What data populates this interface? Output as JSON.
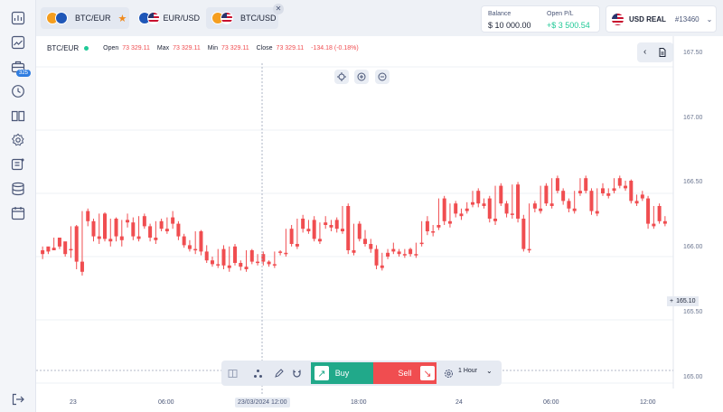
{
  "tabs": [
    {
      "label": "BTC/EUR",
      "coins": [
        "btc",
        "eur"
      ],
      "active": true,
      "favorite": true
    },
    {
      "label": "EUR/USD",
      "coins": [
        "eur",
        "usd"
      ],
      "active": false,
      "favorite": false
    },
    {
      "label": "BTC/USD",
      "coins": [
        "btc",
        "usd"
      ],
      "active": true,
      "favorite": false
    }
  ],
  "account": {
    "balance_label": "Balance",
    "balance_value": "$ 10 000.00",
    "pl_label": "Open P/L",
    "pl_value": "+$ 3 500.54",
    "type": "USD REAL",
    "id": "#13460",
    "pl_color": "#20c997"
  },
  "sidebar": {
    "badge": "325",
    "icons": [
      "dashboard-icon",
      "chart-icon",
      "portfolio-icon",
      "history-icon",
      "book-icon",
      "settings-icon",
      "news-icon",
      "database-icon",
      "calendar-icon",
      "logout-icon"
    ]
  },
  "info": {
    "symbol": "BTC/EUR",
    "open_label": "Open",
    "open": "73 329.11",
    "max_label": "Max",
    "max": "73 329.11",
    "min_label": "Min",
    "min": "73 329.11",
    "close_label": "Close",
    "close": "73 329.11",
    "change": "-134.18 (-0.18%)"
  },
  "y_axis": [
    "167.50",
    "167.00",
    "166.50",
    "166.00",
    "165.50",
    "165.00"
  ],
  "x_axis": [
    "23",
    "06:00",
    "23/03/2024 12:00",
    "18:00",
    "24",
    "06:00",
    "12:00"
  ],
  "crosshair_price": "165.10",
  "trade": {
    "buy": "Buy",
    "sell": "Sell",
    "interval": "1 Hour"
  },
  "colors": {
    "up": "#20c997",
    "down": "#f04d50",
    "accent": "#2f7de1"
  },
  "chart_data": {
    "type": "candlestick",
    "ylim": [
      164.9,
      167.6
    ],
    "candles": [
      [
        166.05,
        166.08,
        166.02,
        165.98
      ],
      [
        166.08,
        166.07,
        166.04,
        166.02
      ],
      [
        166.07,
        166.15,
        166.05,
        166.05
      ],
      [
        166.15,
        166.12,
        166.08,
        166.06
      ],
      [
        166.12,
        166.05,
        166.02,
        166.0
      ],
      [
        166.06,
        166.24,
        166.05,
        165.99
      ],
      [
        166.24,
        166.25,
        165.96,
        165.9
      ],
      [
        165.96,
        166.36,
        165.88,
        165.85
      ],
      [
        166.36,
        166.38,
        166.28,
        166.24
      ],
      [
        166.28,
        166.3,
        166.16,
        166.12
      ],
      [
        166.16,
        166.34,
        166.14,
        166.1
      ],
      [
        166.34,
        166.35,
        166.14,
        166.12
      ],
      [
        166.14,
        166.3,
        166.12,
        166.08
      ],
      [
        166.3,
        166.31,
        166.16,
        166.12
      ],
      [
        166.16,
        166.29,
        166.13,
        166.08
      ],
      [
        166.29,
        166.34,
        166.27,
        166.23
      ],
      [
        166.27,
        166.31,
        166.16,
        166.13
      ],
      [
        166.16,
        166.32,
        166.14,
        166.12
      ],
      [
        166.32,
        166.34,
        166.24,
        166.22
      ],
      [
        166.24,
        166.26,
        166.15,
        166.12
      ],
      [
        166.15,
        166.28,
        166.13,
        166.1
      ],
      [
        166.28,
        166.3,
        166.22,
        166.2
      ],
      [
        166.22,
        166.31,
        166.2,
        166.18
      ],
      [
        166.31,
        166.36,
        166.26,
        166.22
      ],
      [
        166.26,
        166.28,
        166.16,
        166.13
      ],
      [
        166.16,
        166.18,
        166.09,
        166.07
      ],
      [
        166.09,
        166.13,
        166.06,
        166.04
      ],
      [
        166.06,
        166.2,
        166.05,
        166.02
      ],
      [
        166.2,
        166.21,
        166.04,
        166.01
      ],
      [
        166.04,
        166.09,
        165.97,
        165.95
      ],
      [
        165.97,
        166.0,
        165.94,
        165.92
      ],
      [
        165.94,
        166.06,
        165.93,
        165.91
      ],
      [
        166.06,
        166.09,
        165.93,
        165.9
      ],
      [
        165.93,
        166.08,
        165.91,
        165.88
      ],
      [
        166.08,
        166.1,
        165.95,
        165.93
      ],
      [
        165.95,
        165.97,
        165.92,
        165.89
      ],
      [
        165.92,
        166.05,
        165.9,
        165.88
      ],
      [
        166.05,
        166.06,
        165.96,
        165.94
      ],
      [
        165.96,
        166.02,
        165.95,
        165.93
      ],
      [
        166.02,
        166.04,
        165.96,
        165.93
      ],
      [
        165.96,
        165.97,
        165.94,
        165.92
      ],
      [
        165.94,
        166.04,
        165.93,
        165.91
      ],
      [
        166.04,
        166.05,
        166.03,
        166.01
      ],
      [
        166.03,
        166.22,
        166.02,
        166.0
      ],
      [
        166.22,
        166.25,
        166.1,
        166.08
      ],
      [
        166.1,
        166.3,
        166.08,
        166.06
      ],
      [
        166.3,
        166.33,
        166.22,
        166.19
      ],
      [
        166.22,
        166.29,
        166.2,
        166.18
      ],
      [
        166.29,
        166.32,
        166.14,
        166.12
      ],
      [
        166.14,
        166.27,
        166.12,
        166.1
      ],
      [
        166.27,
        166.32,
        166.25,
        166.22
      ],
      [
        166.25,
        166.29,
        166.23,
        166.2
      ],
      [
        166.29,
        166.31,
        166.22,
        166.19
      ],
      [
        166.22,
        166.4,
        166.2,
        166.18
      ],
      [
        166.4,
        166.42,
        166.05,
        166.02
      ],
      [
        166.05,
        166.26,
        166.03,
        166.01
      ],
      [
        166.26,
        166.28,
        166.14,
        166.12
      ],
      [
        166.14,
        166.21,
        166.1,
        166.08
      ],
      [
        166.1,
        166.14,
        166.06,
        166.03
      ],
      [
        166.06,
        166.09,
        165.93,
        165.9
      ],
      [
        165.93,
        166.03,
        165.91,
        165.89
      ],
      [
        166.03,
        166.06,
        166.0,
        165.98
      ],
      [
        166.06,
        166.11,
        166.04,
        166.02
      ],
      [
        166.04,
        166.06,
        166.02,
        166.0
      ],
      [
        166.02,
        166.06,
        166.01,
        165.99
      ],
      [
        166.06,
        166.07,
        166.02,
        166.0
      ],
      [
        166.02,
        166.11,
        166.01,
        165.99
      ],
      [
        166.11,
        166.28,
        166.1,
        166.08
      ],
      [
        166.28,
        166.32,
        166.2,
        166.17
      ],
      [
        166.2,
        166.25,
        166.19,
        166.16
      ],
      [
        166.25,
        166.46,
        166.23,
        166.21
      ],
      [
        166.46,
        166.48,
        166.28,
        166.25
      ],
      [
        166.28,
        166.42,
        166.26,
        166.23
      ],
      [
        166.42,
        166.44,
        166.34,
        166.31
      ],
      [
        166.34,
        166.38,
        166.32,
        166.29
      ],
      [
        166.38,
        166.43,
        166.36,
        166.34
      ],
      [
        166.43,
        166.52,
        166.41,
        166.39
      ],
      [
        166.52,
        166.54,
        166.42,
        166.39
      ],
      [
        166.42,
        166.46,
        166.4,
        166.38
      ],
      [
        166.46,
        166.48,
        166.3,
        166.27
      ],
      [
        166.3,
        166.56,
        166.28,
        166.25
      ],
      [
        166.56,
        166.58,
        166.42,
        166.4
      ],
      [
        166.42,
        166.44,
        166.34,
        166.31
      ],
      [
        166.34,
        166.57,
        166.33,
        166.3
      ],
      [
        166.57,
        166.59,
        166.3,
        166.27
      ],
      [
        166.3,
        166.33,
        166.06,
        166.04
      ],
      [
        166.06,
        166.42,
        166.05,
        166.03
      ],
      [
        166.42,
        166.44,
        166.38,
        166.35
      ],
      [
        166.38,
        166.56,
        166.36,
        166.34
      ],
      [
        166.56,
        166.58,
        166.42,
        166.4
      ],
      [
        166.42,
        166.62,
        166.4,
        166.38
      ],
      [
        166.62,
        166.64,
        166.52,
        166.5
      ],
      [
        166.52,
        166.54,
        166.44,
        166.41
      ],
      [
        166.44,
        166.46,
        166.38,
        166.35
      ],
      [
        166.38,
        166.52,
        166.36,
        166.34
      ],
      [
        166.52,
        166.62,
        166.5,
        166.48
      ],
      [
        166.62,
        166.64,
        166.52,
        166.5
      ],
      [
        166.52,
        166.54,
        166.36,
        166.33
      ],
      [
        166.36,
        166.54,
        166.34,
        166.32
      ],
      [
        166.54,
        166.58,
        166.5,
        166.48
      ],
      [
        166.5,
        166.54,
        166.48,
        166.46
      ],
      [
        166.54,
        166.62,
        166.52,
        166.5
      ],
      [
        166.62,
        166.64,
        166.56,
        166.54
      ],
      [
        166.56,
        166.6,
        166.54,
        166.52
      ],
      [
        166.6,
        166.61,
        166.44,
        166.42
      ],
      [
        166.44,
        166.49,
        166.42,
        166.4
      ],
      [
        166.49,
        166.52,
        166.46,
        166.44
      ],
      [
        166.46,
        166.48,
        166.26,
        166.22
      ],
      [
        166.26,
        166.4,
        166.24,
        166.22
      ],
      [
        166.4,
        166.42,
        166.28,
        166.26
      ],
      [
        166.28,
        166.32,
        166.26,
        166.24
      ]
    ]
  }
}
